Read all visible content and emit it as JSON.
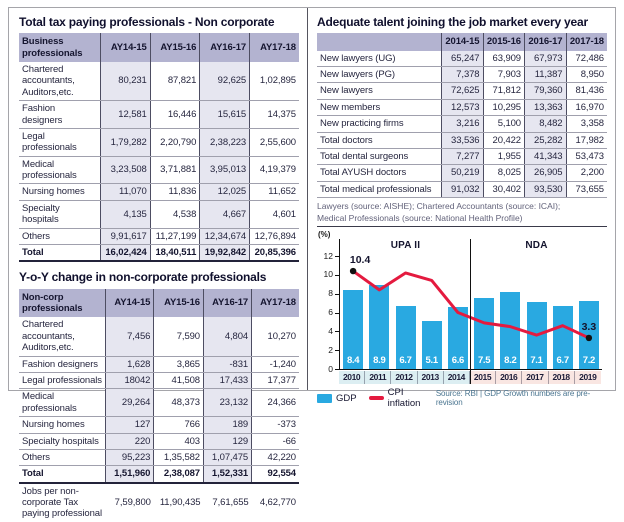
{
  "palette": {
    "header_bg": "#b3b3d0",
    "shaded_column_bg": "#e6e6f0",
    "bar_color": "#29a9e1",
    "line_color": "#e41a3f",
    "upa_region_bg": "#dceef2",
    "nda_region_bg": "#f9e6e2",
    "title_color": "#10102d"
  },
  "left": {
    "tax_table": {
      "title": "Total tax paying professionals - Non corporate",
      "headers": [
        "Business professionals",
        "AY14-15",
        "AY15-16",
        "AY16-17",
        "AY17-18"
      ],
      "rows": [
        [
          "Chartered accountants, Auditors,etc.",
          "80,231",
          "87,821",
          "92,625",
          "1,02,895"
        ],
        [
          "Fashion designers",
          "12,581",
          "16,446",
          "15,615",
          "14,375"
        ],
        [
          "Legal professionals",
          "1,79,282",
          "2,20,790",
          "2,38,223",
          "2,55,600"
        ],
        [
          "Medical professionals",
          "3,23,508",
          "3,71,881",
          "3,95,013",
          "4,19,379"
        ],
        [
          "Nursing homes",
          "11,070",
          "11,836",
          "12,025",
          "11,652"
        ],
        [
          "Specialty hospitals",
          "4,135",
          "4,538",
          "4,667",
          "4,601"
        ],
        [
          "Others",
          "9,91,617",
          "11,27,199",
          "12,34,674",
          "12,76,894"
        ]
      ],
      "total_row": [
        "Total",
        "16,02,424",
        "18,40,511",
        "19,92,842",
        "20,85,396"
      ]
    },
    "yoy_table": {
      "title": "Y-o-Y change in non-corporate professionals",
      "headers": [
        "Non-corp professionals",
        "AY14-15",
        "AY15-16",
        "AY16-17",
        "AY17-18"
      ],
      "rows": [
        [
          "Chartered accountants, Auditors,etc.",
          "7,456",
          "7,590",
          "4,804",
          "10,270"
        ],
        [
          "Fashion designers",
          "1,628",
          "3,865",
          "-831",
          "-1,240"
        ],
        [
          "Legal professionals",
          "18042",
          "41,508",
          "17,433",
          "17,377"
        ],
        [
          "Medical professionals",
          "29,264",
          "48,373",
          "23,132",
          "24,366"
        ],
        [
          "Nursing homes",
          "127",
          "766",
          "189",
          "-373"
        ],
        [
          "Specialty hospitals",
          "220",
          "403",
          "129",
          "-66"
        ],
        [
          "Others",
          "95,223",
          "1,35,582",
          "1,07,475",
          "42,220"
        ]
      ],
      "total_row": [
        "Total",
        "1,51,960",
        "2,38,087",
        "1,52,331",
        "92,554"
      ],
      "footer_row": [
        "Jobs per non-corporate Tax paying professional",
        "7,59,800",
        "11,90,435",
        "7,61,655",
        "4,62,770"
      ]
    }
  },
  "right": {
    "talent_table": {
      "title": "Adequate talent joining the job market every year",
      "headers": [
        "",
        "2014-15",
        "2015-16",
        "2016-17",
        "2017-18"
      ],
      "rows": [
        [
          "New lawyers (UG)",
          "65,247",
          "63,909",
          "67,973",
          "72,486"
        ],
        [
          "New lawyers (PG)",
          "7,378",
          "7,903",
          "11,387",
          "8,950"
        ],
        [
          "New lawyers",
          "72,625",
          "71,812",
          "79,360",
          "81,436"
        ],
        [
          "New members",
          "12,573",
          "10,295",
          "13,363",
          "16,970"
        ],
        [
          "New practicing firms",
          "3,216",
          "5,100",
          "8,482",
          "3,358"
        ],
        [
          "Total doctors",
          "33,536",
          "20,422",
          "25,282",
          "17,982"
        ],
        [
          "Total dental surgeons",
          "7,277",
          "1,955",
          "41,343",
          "53,473"
        ],
        [
          "Total AYUSH doctors",
          "50,219",
          "8,025",
          "26,905",
          "2,200"
        ],
        [
          "Total medical professionals",
          "91,032",
          "30,402",
          "93,530",
          "73,655"
        ]
      ]
    },
    "footnote": [
      "Lawyers (source: AISHE); Chartered Accountants (source: ICAI);",
      "Medical Professionals (source: National Health Profile)"
    ]
  },
  "chart_data": {
    "type": "bar",
    "subtype": "bar+line combo",
    "categories": [
      "2010",
      "2011",
      "2012",
      "2013",
      "2014",
      "2015",
      "2016",
      "2017",
      "2018",
      "2019"
    ],
    "series": [
      {
        "name": "GDP",
        "type": "bar",
        "color": "#29a9e1",
        "values": [
          8.4,
          8.9,
          6.7,
          5.1,
          6.6,
          7.5,
          8.2,
          7.1,
          6.7,
          7.2
        ]
      },
      {
        "name": "CPI inflation",
        "type": "line",
        "color": "#e41a3f",
        "values": [
          10.4,
          8.4,
          10.2,
          9.4,
          6.0,
          4.9,
          4.5,
          3.6,
          4.6,
          3.3
        ]
      }
    ],
    "bar_labels": [
      "8.4",
      "8.9",
      "6.7",
      "5.1",
      "6.6",
      "7.5",
      "8.2",
      "7.1",
      "6.7",
      "7.2"
    ],
    "annotations": [
      {
        "index": 0,
        "label": "10.4"
      },
      {
        "index": 9,
        "label": "3.3"
      }
    ],
    "regions": [
      {
        "label": "UPA II",
        "from": "2010",
        "to": "2014",
        "color": "#dceef2"
      },
      {
        "label": "NDA",
        "from": "2015",
        "to": "2019",
        "color": "#f9e6e2"
      }
    ],
    "ylabel": "(%)",
    "ylim": [
      0,
      12
    ],
    "yticks": [
      0,
      2,
      4,
      6,
      8,
      10,
      12
    ],
    "grid": false,
    "legend_position": "bottom-left",
    "source": "Source: RBI | GDP Growth numbers are pre-revision"
  }
}
